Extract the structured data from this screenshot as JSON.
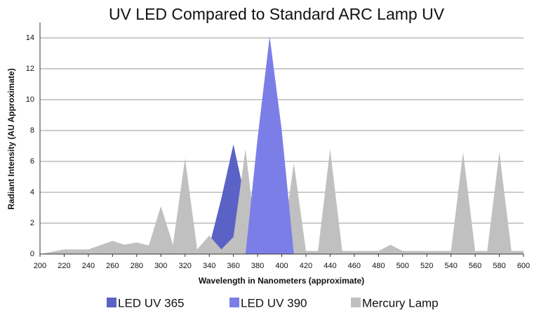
{
  "chart_data": {
    "type": "area",
    "title": "UV LED Compared to Standard ARC Lamp UV",
    "x_label": "Wavelength in Nanometers (approximate)",
    "y_label": "Radiant Intensity (AU Approximate)",
    "x": [
      200,
      220,
      240,
      260,
      270,
      280,
      290,
      300,
      310,
      320,
      330,
      340,
      350,
      360,
      370,
      380,
      390,
      400,
      410,
      420,
      430,
      440,
      450,
      460,
      480,
      490,
      500,
      540,
      550,
      560,
      570,
      580,
      590,
      600
    ],
    "series": [
      {
        "name": "LED UV 365",
        "color": "#5b62c6",
        "values": [
          null,
          null,
          null,
          null,
          null,
          null,
          null,
          null,
          null,
          null,
          null,
          0.5,
          3.6,
          7.1,
          3.5,
          0,
          null,
          null,
          null,
          null,
          null,
          null,
          null,
          null,
          null,
          null,
          null,
          null,
          null,
          null,
          null,
          null,
          null,
          null
        ]
      },
      {
        "name": "LED UV 390",
        "color": "#7c7ee8",
        "values": [
          null,
          null,
          null,
          null,
          null,
          null,
          null,
          null,
          null,
          null,
          null,
          null,
          null,
          null,
          0,
          7.5,
          14.1,
          8,
          0,
          null,
          null,
          null,
          null,
          null,
          null,
          null,
          null,
          null,
          null,
          null,
          null,
          null,
          null,
          null
        ]
      },
      {
        "name": "Mercury Lamp",
        "color": "#c0c0c0",
        "values": [
          0,
          0.3,
          0.3,
          0.85,
          0.6,
          0.75,
          0.55,
          3.1,
          0.6,
          6.2,
          0.3,
          1.2,
          0.3,
          1.1,
          6.8,
          0.2,
          0.2,
          0.2,
          5.9,
          0.2,
          0.2,
          6.8,
          0.2,
          0.2,
          0.2,
          0.6,
          0.2,
          0.2,
          6.6,
          0.2,
          0.2,
          6.6,
          0.2,
          0.2
        ]
      }
    ],
    "xlim": [
      200,
      600
    ],
    "ylim": [
      0,
      15
    ],
    "xticks": [
      200,
      220,
      240,
      260,
      280,
      300,
      320,
      340,
      360,
      380,
      400,
      420,
      440,
      460,
      480,
      500,
      520,
      540,
      560,
      580,
      600
    ],
    "yticks": [
      0,
      2,
      4,
      6,
      8,
      10,
      12,
      14
    ],
    "grid": true,
    "legend": "bottom"
  }
}
